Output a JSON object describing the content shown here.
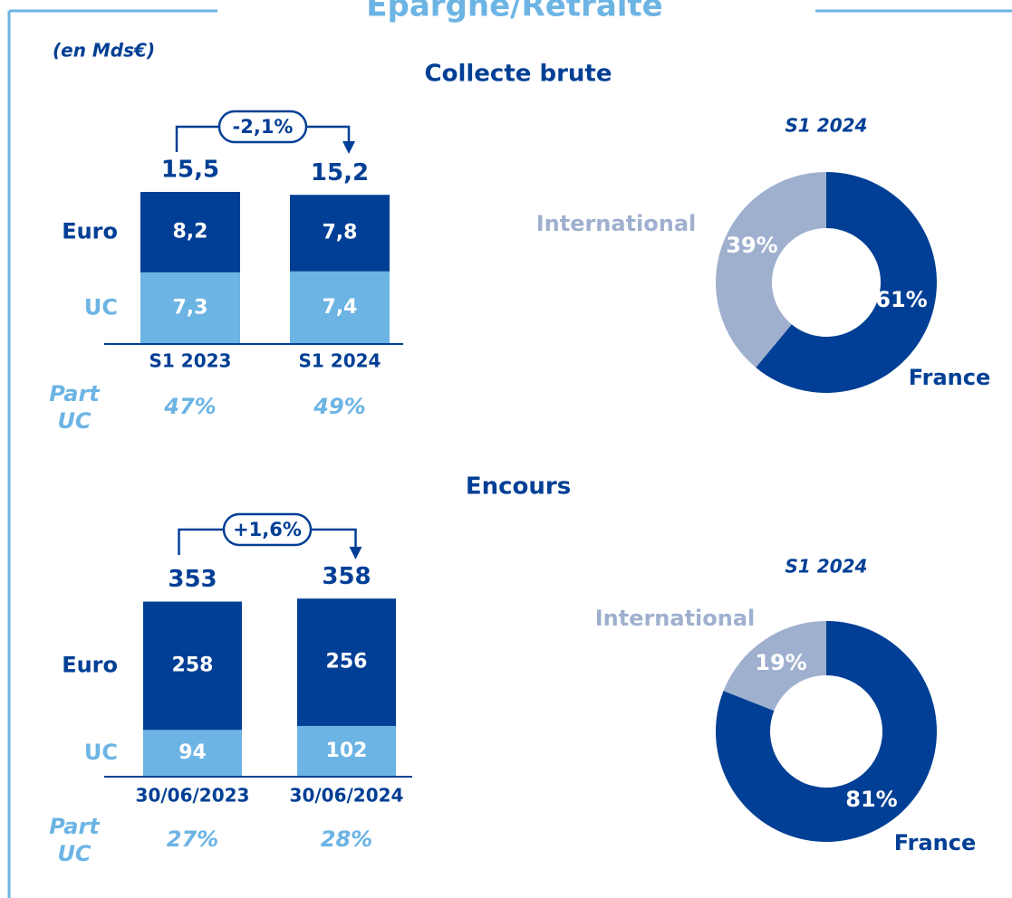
{
  "title": "Epargne/Retraite",
  "unit_note": "(en Mds€)",
  "chart_data": [
    {
      "type": "stacked_bar",
      "title": "Collecte brute",
      "categories": [
        "S1 2023",
        "S1 2024"
      ],
      "series": [
        {
          "name": "UC",
          "color": "#6cb4e4",
          "values": [
            7.3,
            7.4
          ],
          "value_labels": [
            "7,3",
            "7,4"
          ]
        },
        {
          "name": "Euro",
          "color": "#003f95",
          "values": [
            8.2,
            7.8
          ],
          "value_labels": [
            "8,2",
            "7,8"
          ]
        }
      ],
      "totals": [
        15.5,
        15.2
      ],
      "total_labels": [
        "15,5",
        "15,2"
      ],
      "change_label": "-2,1%",
      "share_title": "Part UC",
      "share_values": [
        47,
        49
      ],
      "share_labels": [
        "47%",
        "49%"
      ]
    },
    {
      "type": "donut",
      "title": "S1 2024",
      "categories": [
        "France",
        "International"
      ],
      "values": [
        61,
        39
      ],
      "value_labels": [
        "61%",
        "39%"
      ],
      "colors": [
        "#003f95",
        "#9fb0cf"
      ]
    },
    {
      "type": "stacked_bar",
      "title": "Encours",
      "categories": [
        "30/06/2023",
        "30/06/2024"
      ],
      "series": [
        {
          "name": "UC",
          "color": "#6cb4e4",
          "values": [
            94,
            102
          ]
        },
        {
          "name": "Euro",
          "color": "#003f95",
          "values": [
            258,
            256
          ]
        }
      ],
      "totals": [
        353,
        358
      ],
      "change_label": "+1,6%",
      "share_title": "Part UC",
      "share_values": [
        27,
        28
      ],
      "share_labels": [
        "27%",
        "28%"
      ]
    },
    {
      "type": "donut",
      "title": "S1 2024",
      "categories": [
        "France",
        "International"
      ],
      "values": [
        81,
        19
      ],
      "value_labels": [
        "81%",
        "19%"
      ],
      "colors": [
        "#003f95",
        "#9fb0cf"
      ]
    }
  ]
}
